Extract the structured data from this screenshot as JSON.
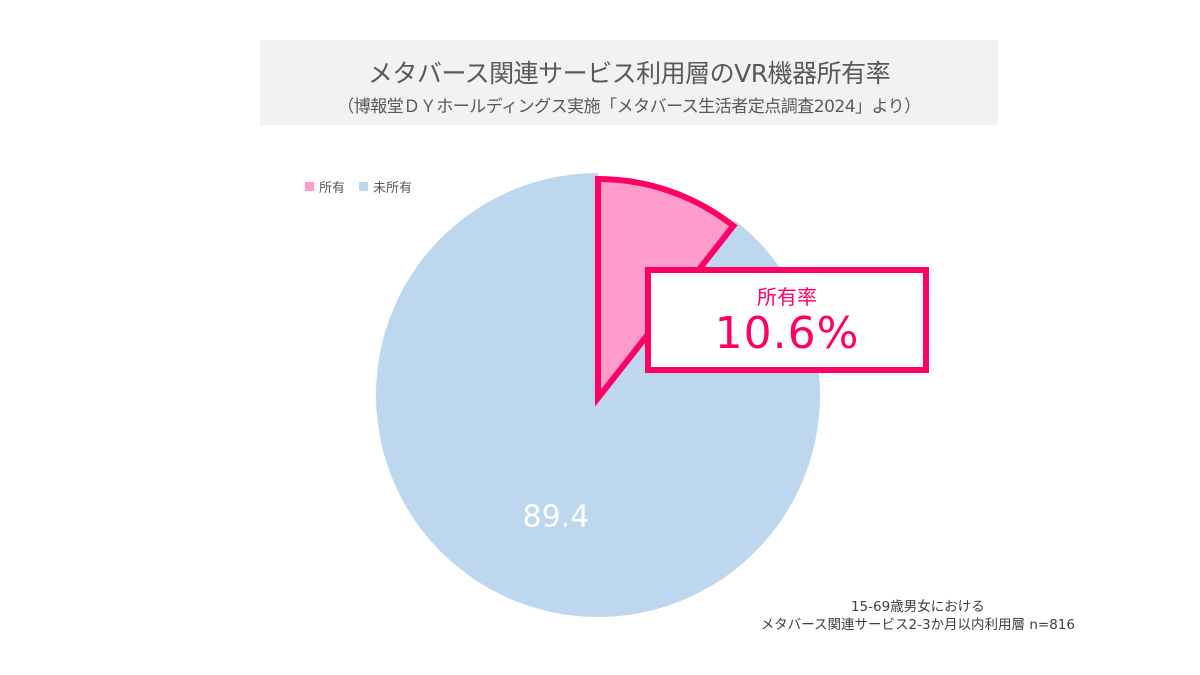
{
  "chart_data": {
    "type": "pie",
    "title": "メタバース関連サービス利用層のVR機器所有率",
    "subtitle": "（博報堂ＤＹホールディングス実施「メタバース生活者定点調査2024」より）",
    "categories": [
      "所有",
      "未所有"
    ],
    "values": [
      10.6,
      89.4
    ],
    "colors": [
      "#ff9ccc",
      "#bdd7ee"
    ],
    "highlight_border_color": "#ff0066",
    "data_labels": [
      "10.6%",
      "89.4"
    ],
    "legend": {
      "placement": "top-left",
      "entries": [
        "所有",
        "未所有"
      ]
    },
    "callout": {
      "label": "所有率",
      "value": "10.6%"
    },
    "note": [
      "15-69歳男女における",
      "メタバース関連サービス2-3か月以内利用層 n=816"
    ]
  }
}
